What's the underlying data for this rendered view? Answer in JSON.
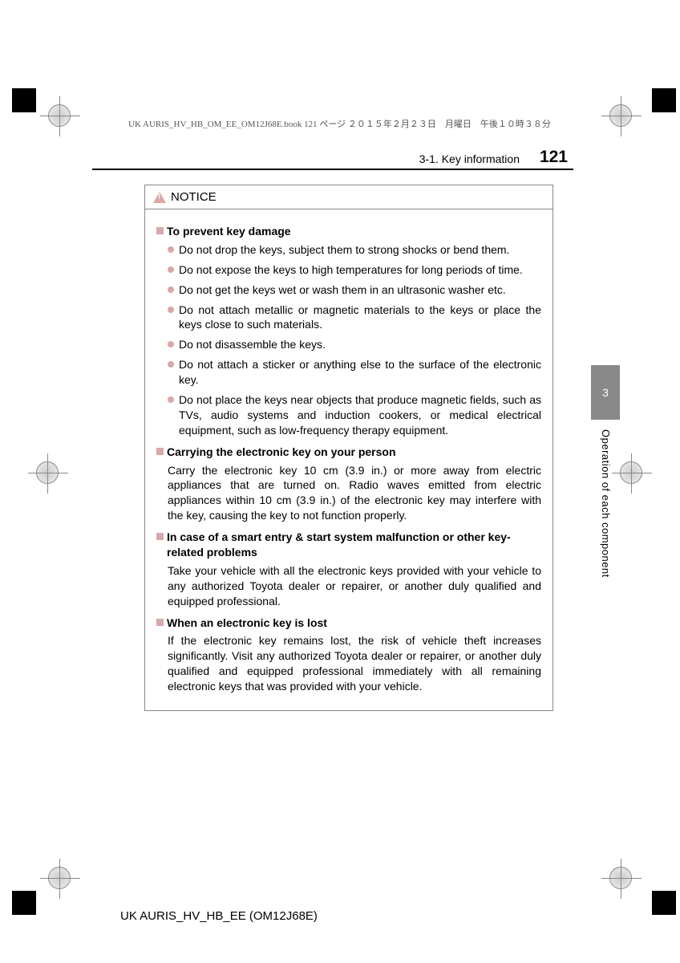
{
  "meta": {
    "headerText": "UK AURIS_HV_HB_OM_EE_OM12J68E.book  121 ページ  ２０１５年２月２３日　月曜日　午後１０時３８分",
    "sectionLabel": "3-1. Key information",
    "pageNumber": "121",
    "sideTabNumber": "3",
    "sideText": "Operation of each component",
    "footerText": "UK AURIS_HV_HB_EE (OM12J68E)"
  },
  "notice": {
    "title": "NOTICE",
    "sections": [
      {
        "heading": "To prevent key damage",
        "bullets": [
          "Do not drop the keys, subject them to strong shocks or bend them.",
          "Do not expose the keys to high temperatures for long periods of time.",
          "Do not get the keys wet or wash them in an ultrasonic washer etc.",
          "Do not attach metallic or magnetic materials to the keys or place the keys close to such materials.",
          "Do not disassemble the keys.",
          "Do not attach a sticker or anything else to the surface of the electronic key.",
          "Do not place the keys near objects that produce magnetic fields, such as TVs, audio systems and induction cookers, or medical electrical equipment, such as low-frequency therapy equipment."
        ]
      },
      {
        "heading": "Carrying the electronic key on your person",
        "body": "Carry the electronic key 10 cm (3.9 in.) or more away from electric appliances that are turned on. Radio waves emitted from electric appliances within 10 cm (3.9 in.) of the electronic key may interfere with the key, causing the key to not function properly."
      },
      {
        "heading": "In case of a smart entry & start system malfunction or other key-related problems",
        "body": "Take your vehicle with all the electronic keys provided with your vehicle to any authorized Toyota dealer or repairer, or another duly qualified and equipped professional."
      },
      {
        "heading": "When an electronic key is lost",
        "body": "If the electronic key remains lost, the risk of vehicle theft increases significantly. Visit any authorized Toyota dealer or repairer, or another duly qualified and equipped professional immediately with all remaining electronic keys that was provided with your vehicle."
      }
    ]
  },
  "colors": {
    "accent": "#d9a8a8",
    "sideTab": "#888888",
    "text": "#000000",
    "border": "#888888"
  }
}
